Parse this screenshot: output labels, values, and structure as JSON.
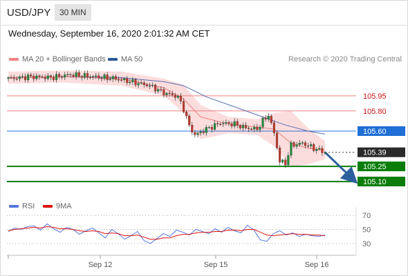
{
  "header": {
    "pair": "USD/JPY",
    "timeframe": "30 MIN"
  },
  "timestamp": "Wednesday, September 16, 2020 2:01:32 AM CET",
  "legend": [
    {
      "name": "MA 20 + Bollinger Bands",
      "color": "#f08080"
    },
    {
      "name": "MA 50",
      "color": "#2b5797"
    }
  ],
  "credit": "Research © 2020 Trading Central",
  "rsi_legend": [
    {
      "name": "RSI",
      "color": "#5577dd"
    },
    {
      "name": "9MA",
      "color": "#dd1111"
    }
  ],
  "chart_data": [
    {
      "type": "candlestick",
      "title": "USD/JPY",
      "timeframe": "30 MIN",
      "x_ticks": [
        "Sep 12",
        "Sep 15",
        "Sep 16"
      ],
      "ylim": [
        104.95,
        106.25
      ],
      "levels": [
        {
          "value": 105.95,
          "label": "105.95",
          "kind": "resistance"
        },
        {
          "value": 105.8,
          "label": "105.80",
          "kind": "resistance"
        },
        {
          "value": 105.6,
          "label": "105.60",
          "kind": "pivot"
        },
        {
          "value": 105.39,
          "label": "105.39",
          "kind": "last"
        },
        {
          "value": 105.25,
          "label": "105.25",
          "kind": "support"
        },
        {
          "value": 105.1,
          "label": "105.10",
          "kind": "support"
        }
      ],
      "close_path": [
        {
          "x": 0,
          "y": 106.12
        },
        {
          "x": 8,
          "y": 106.14
        },
        {
          "x": 15,
          "y": 106.13
        },
        {
          "x": 22,
          "y": 106.16
        },
        {
          "x": 30,
          "y": 106.14
        },
        {
          "x": 38,
          "y": 106.12
        },
        {
          "x": 45,
          "y": 106.08
        },
        {
          "x": 50,
          "y": 106.05
        },
        {
          "x": 55,
          "y": 105.98
        },
        {
          "x": 60,
          "y": 105.94
        },
        {
          "x": 62,
          "y": 105.82
        },
        {
          "x": 64,
          "y": 105.65
        },
        {
          "x": 66,
          "y": 105.56
        },
        {
          "x": 70,
          "y": 105.62
        },
        {
          "x": 75,
          "y": 105.68
        },
        {
          "x": 80,
          "y": 105.67
        },
        {
          "x": 84,
          "y": 105.63
        },
        {
          "x": 88,
          "y": 105.62
        },
        {
          "x": 90,
          "y": 105.7
        },
        {
          "x": 92,
          "y": 105.76
        },
        {
          "x": 94,
          "y": 105.58
        },
        {
          "x": 96,
          "y": 105.3
        },
        {
          "x": 98,
          "y": 105.28
        },
        {
          "x": 100,
          "y": 105.46
        },
        {
          "x": 104,
          "y": 105.48
        },
        {
          "x": 108,
          "y": 105.43
        },
        {
          "x": 112,
          "y": 105.39
        }
      ],
      "ma20": [
        {
          "x": 0,
          "y": 106.13
        },
        {
          "x": 20,
          "y": 106.14
        },
        {
          "x": 40,
          "y": 106.12
        },
        {
          "x": 55,
          "y": 106.03
        },
        {
          "x": 62,
          "y": 105.92
        },
        {
          "x": 68,
          "y": 105.74
        },
        {
          "x": 78,
          "y": 105.67
        },
        {
          "x": 88,
          "y": 105.64
        },
        {
          "x": 94,
          "y": 105.62
        },
        {
          "x": 100,
          "y": 105.48
        },
        {
          "x": 106,
          "y": 105.43
        },
        {
          "x": 112,
          "y": 105.41
        }
      ],
      "bollinger_upper": [
        {
          "x": 0,
          "y": 106.19
        },
        {
          "x": 20,
          "y": 106.2
        },
        {
          "x": 40,
          "y": 106.19
        },
        {
          "x": 55,
          "y": 106.12
        },
        {
          "x": 62,
          "y": 106.06
        },
        {
          "x": 68,
          "y": 105.86
        },
        {
          "x": 78,
          "y": 105.74
        },
        {
          "x": 88,
          "y": 105.72
        },
        {
          "x": 94,
          "y": 105.78
        },
        {
          "x": 100,
          "y": 105.8
        },
        {
          "x": 106,
          "y": 105.63
        },
        {
          "x": 112,
          "y": 105.5
        }
      ],
      "bollinger_lower": [
        {
          "x": 0,
          "y": 106.07
        },
        {
          "x": 20,
          "y": 106.08
        },
        {
          "x": 40,
          "y": 106.05
        },
        {
          "x": 55,
          "y": 105.95
        },
        {
          "x": 62,
          "y": 105.78
        },
        {
          "x": 68,
          "y": 105.52
        },
        {
          "x": 78,
          "y": 105.58
        },
        {
          "x": 88,
          "y": 105.56
        },
        {
          "x": 94,
          "y": 105.45
        },
        {
          "x": 100,
          "y": 105.25
        },
        {
          "x": 106,
          "y": 105.27
        },
        {
          "x": 112,
          "y": 105.32
        }
      ],
      "ma50": [
        {
          "x": 0,
          "y": 106.13
        },
        {
          "x": 20,
          "y": 106.14
        },
        {
          "x": 40,
          "y": 106.13
        },
        {
          "x": 55,
          "y": 106.09
        },
        {
          "x": 62,
          "y": 106.05
        },
        {
          "x": 70,
          "y": 105.94
        },
        {
          "x": 80,
          "y": 105.84
        },
        {
          "x": 90,
          "y": 105.74
        },
        {
          "x": 98,
          "y": 105.66
        },
        {
          "x": 106,
          "y": 105.6
        },
        {
          "x": 112,
          "y": 105.57
        }
      ],
      "forecast": [
        {
          "x": 112,
          "y": 105.39
        },
        {
          "x": 122,
          "y": 105.12
        }
      ]
    },
    {
      "type": "line",
      "title": "RSI",
      "ylim": [
        15,
        85
      ],
      "y_ticks": [
        70,
        50,
        30
      ],
      "series": [
        {
          "name": "RSI",
          "color": "#5577dd",
          "values": [
            47,
            52,
            50,
            54,
            55,
            49,
            58,
            51,
            46,
            53,
            50,
            43,
            48,
            52,
            45,
            38,
            50,
            44,
            36,
            41,
            47,
            34,
            30,
            37,
            44,
            40,
            49,
            46,
            42,
            50,
            47,
            44,
            51,
            46,
            53,
            48,
            45,
            56,
            49,
            35,
            33,
            44,
            48,
            42,
            45,
            40,
            43,
            41,
            40,
            42
          ]
        },
        {
          "name": "9MA",
          "color": "#dd1111",
          "values": [
            48,
            50,
            51,
            52,
            53,
            52,
            54,
            53,
            51,
            51,
            50,
            48,
            47,
            48,
            47,
            44,
            45,
            44,
            41,
            41,
            42,
            39,
            36,
            36,
            38,
            38,
            41,
            43,
            43,
            45,
            46,
            46,
            47,
            47,
            49,
            49,
            48,
            50,
            50,
            46,
            42,
            41,
            42,
            43,
            44,
            43,
            43,
            42,
            42,
            41
          ]
        }
      ]
    }
  ]
}
